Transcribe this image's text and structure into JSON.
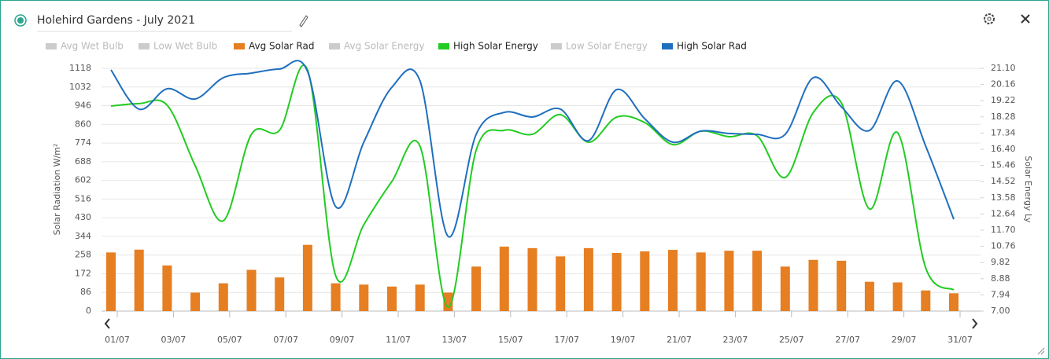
{
  "chart_data": {
    "type": "bar_line",
    "title": "Holehird Gardens - July 2021",
    "y_label": "Solar Radiation W/m²",
    "y2_label": "Solar Energy Ly",
    "categories": [
      "01/07",
      null,
      "03/07",
      null,
      "05/07",
      null,
      "07/07",
      null,
      "09/07",
      null,
      "11/07",
      null,
      "13/07",
      null,
      "15/07",
      null,
      "17/07",
      null,
      "19/07",
      null,
      "21/07",
      null,
      "23/07",
      null,
      "25/07",
      null,
      "27/07",
      null,
      "29/07",
      null,
      "31/07"
    ],
    "series": [
      {
        "name": "Avg Wet Bulb",
        "color": "#cccccc",
        "visible": false
      },
      {
        "name": "Low Wet Bulb",
        "color": "#cccccc",
        "visible": false
      },
      {
        "name": "Avg Solar Rad",
        "color": "#e67e22",
        "visible": true,
        "kind": "bar",
        "values": [
          270,
          283,
          210,
          85,
          128,
          190,
          155,
          305,
          128,
          122,
          113,
          122,
          85,
          205,
          297,
          290,
          252,
          290,
          268,
          275,
          282,
          270,
          278,
          278,
          205,
          236,
          232,
          135,
          132,
          95,
          82
        ]
      },
      {
        "name": "Avg Solar Energy",
        "color": "#cccccc",
        "visible": false
      },
      {
        "name": "High Solar Energy",
        "color": "#22cc22",
        "visible": true,
        "kind": "line",
        "axis": "y2",
        "values": [
          18.91,
          19.05,
          18.96,
          15.44,
          12.25,
          17.27,
          17.5,
          21.0,
          9.05,
          12.02,
          14.53,
          16.58,
          7.23,
          16.35,
          17.5,
          17.27,
          18.41,
          16.81,
          18.27,
          17.95,
          16.67,
          17.45,
          17.13,
          17.18,
          14.76,
          18.54,
          19.09,
          12.93,
          17.36,
          9.51,
          8.23
        ]
      },
      {
        "name": "Low Solar Energy",
        "color": "#cccccc",
        "visible": false
      },
      {
        "name": "High Solar Rad",
        "color": "#1f6fbf",
        "visible": true,
        "kind": "line",
        "values": [
          1111,
          930,
          1024,
          977,
          1075,
          1096,
          1115,
          1103,
          481,
          778,
          1031,
          1060,
          344,
          814,
          915,
          894,
          930,
          785,
          1020,
          886,
          778,
          829,
          818,
          814,
          814,
          1075,
          941,
          832,
          1060,
          760,
          423
        ]
      }
    ],
    "ylim": [
      0,
      1118
    ],
    "yticks": [
      0,
      86,
      172,
      258,
      344,
      430,
      516,
      602,
      688,
      774,
      860,
      946,
      1032,
      1118
    ],
    "y2lim": [
      7,
      21.1
    ],
    "y2ticks": [
      {
        "value": 7,
        "label": "7.00"
      },
      7.94,
      8.88,
      9.82,
      10.76,
      {
        "value": 11.7,
        "label": "11.70"
      },
      12.64,
      13.58,
      14.52,
      15.46,
      {
        "value": 16.4,
        "label": "16.40"
      },
      17.34,
      18.28,
      19.22,
      20.16,
      {
        "value": 21.1,
        "label": "21.10"
      }
    ],
    "grid": true
  }
}
